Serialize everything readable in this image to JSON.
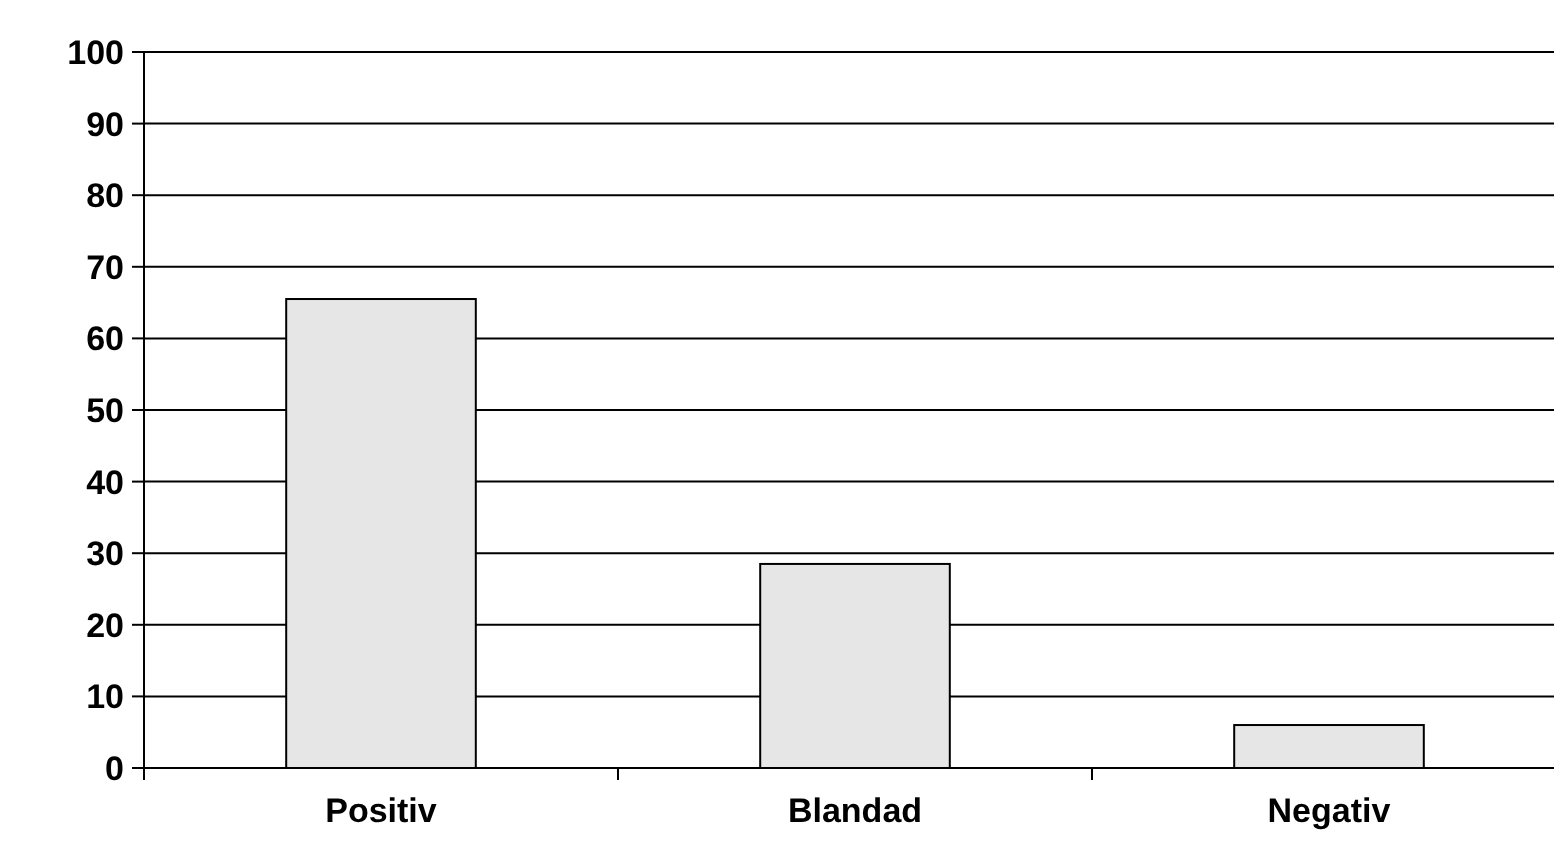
{
  "chart_data": {
    "type": "bar",
    "categories": [
      "Positiv",
      "Blandad",
      "Negativ"
    ],
    "values": [
      65.5,
      28.5,
      6
    ],
    "color": "#e6e6e6",
    "ylim": [
      0,
      100
    ],
    "yticks": [
      0,
      10,
      20,
      30,
      40,
      50,
      60,
      70,
      80,
      90,
      100
    ],
    "grid": "y"
  }
}
